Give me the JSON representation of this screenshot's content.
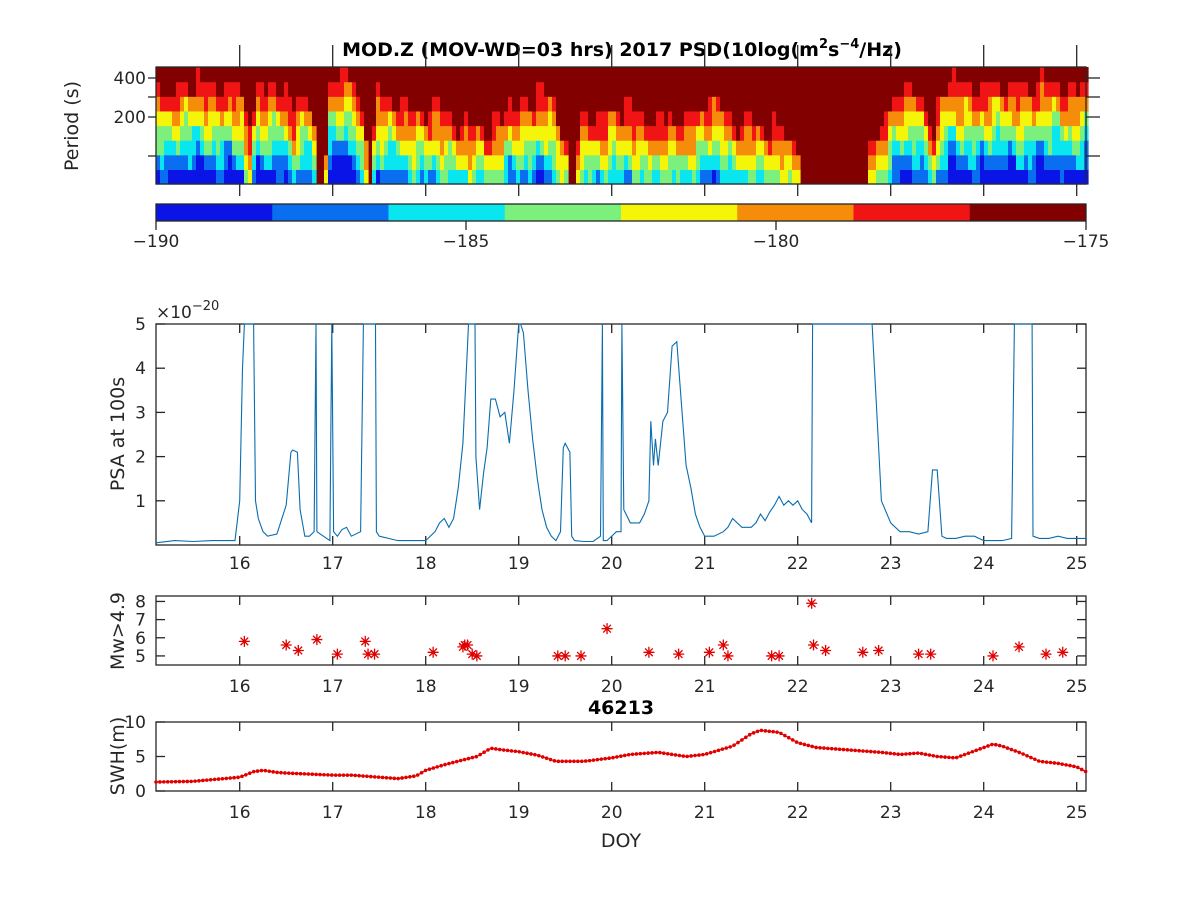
{
  "chart_data": [
    {
      "type": "heatmap",
      "title_parts": [
        "MOD.Z (MOV-WD=03 hrs) 2017 PSD(10log(m",
        "2",
        "s",
        "−4",
        "/Hz)"
      ],
      "ylabel": "Period (s)",
      "yticks": [
        "400",
        "200"
      ],
      "xlim": [
        15.1,
        25.1
      ],
      "colorbar": {
        "range": [
          -190,
          -175
        ],
        "ticks": [
          "−190",
          "−185",
          "−180",
          "−175"
        ],
        "colors": [
          "#0a14e6",
          "#0a6ef0",
          "#0ae6f0",
          "#7cf07c",
          "#f5f50a",
          "#f58c0a",
          "#f01414",
          "#820000"
        ]
      },
      "saturated_color": "#820000",
      "background_levels": [
        [
          15.1,
          3
        ],
        [
          15.5,
          3
        ],
        [
          15.9,
          3
        ],
        [
          16.0,
          4
        ],
        [
          16.08,
          7
        ],
        [
          16.15,
          3
        ],
        [
          16.4,
          3
        ],
        [
          16.55,
          5
        ],
        [
          16.62,
          4
        ],
        [
          16.75,
          3
        ],
        [
          16.82,
          8
        ],
        [
          16.9,
          8
        ],
        [
          16.95,
          3
        ],
        [
          17.2,
          2
        ],
        [
          17.3,
          5
        ],
        [
          17.38,
          8
        ],
        [
          17.45,
          4
        ],
        [
          17.7,
          4
        ],
        [
          18.0,
          5
        ],
        [
          18.3,
          5
        ],
        [
          18.45,
          6
        ],
        [
          18.7,
          6
        ],
        [
          18.9,
          4
        ],
        [
          19.0,
          5
        ],
        [
          19.3,
          3
        ],
        [
          19.48,
          7
        ],
        [
          19.55,
          8
        ],
        [
          19.7,
          5
        ],
        [
          20.0,
          5
        ],
        [
          20.3,
          5
        ],
        [
          20.6,
          6
        ],
        [
          20.8,
          5
        ],
        [
          21.0,
          4
        ],
        [
          21.3,
          5
        ],
        [
          21.6,
          6
        ],
        [
          21.8,
          6
        ],
        [
          22.1,
          8
        ],
        [
          22.5,
          8
        ],
        [
          22.7,
          8
        ],
        [
          22.85,
          6
        ],
        [
          23.0,
          4
        ],
        [
          23.3,
          3
        ],
        [
          23.45,
          6
        ],
        [
          23.55,
          3
        ],
        [
          23.8,
          3
        ],
        [
          24.0,
          3
        ],
        [
          24.4,
          3
        ],
        [
          24.6,
          3
        ],
        [
          24.9,
          3
        ],
        [
          25.1,
          3
        ]
      ]
    },
    {
      "type": "line",
      "ylabel": "PSA at 100s",
      "multiplier": "×10",
      "multiplier_exp": "−20",
      "ylim": [
        0,
        5
      ],
      "yticks": [
        "1",
        "2",
        "3",
        "4",
        "5"
      ],
      "xlim": [
        15.1,
        25.1
      ],
      "xticks": [
        "16",
        "17",
        "18",
        "19",
        "20",
        "21",
        "22",
        "23",
        "24",
        "25"
      ],
      "color": "#0a6dae",
      "x": [
        15.1,
        15.3,
        15.5,
        15.7,
        15.95,
        16.0,
        16.03,
        16.05,
        16.07,
        16.15,
        16.17,
        16.2,
        16.25,
        16.3,
        16.4,
        16.5,
        16.55,
        16.57,
        16.62,
        16.65,
        16.7,
        16.75,
        16.8,
        16.82,
        16.83,
        16.9,
        16.97,
        16.99,
        17.01,
        17.05,
        17.1,
        17.15,
        17.2,
        17.3,
        17.33,
        17.34,
        17.46,
        17.47,
        17.5,
        17.6,
        17.7,
        17.8,
        17.9,
        18.0,
        18.1,
        18.15,
        18.2,
        18.25,
        18.3,
        18.35,
        18.4,
        18.45,
        18.46,
        18.53,
        18.54,
        18.58,
        18.62,
        18.66,
        18.7,
        18.75,
        18.8,
        18.85,
        18.9,
        18.95,
        19.0,
        19.02,
        19.05,
        19.1,
        19.15,
        19.2,
        19.25,
        19.3,
        19.35,
        19.4,
        19.45,
        19.48,
        19.5,
        19.55,
        19.57,
        19.6,
        19.7,
        19.8,
        19.88,
        19.9,
        19.91,
        19.94,
        19.95,
        20.05,
        20.1,
        20.11,
        20.13,
        20.2,
        20.3,
        20.35,
        20.4,
        20.42,
        20.45,
        20.47,
        20.5,
        20.55,
        20.6,
        20.65,
        20.7,
        20.75,
        20.8,
        20.85,
        20.9,
        20.95,
        21.0,
        21.1,
        21.2,
        21.25,
        21.3,
        21.4,
        21.5,
        21.55,
        21.6,
        21.65,
        21.7,
        21.75,
        21.8,
        21.85,
        21.9,
        21.95,
        22.0,
        22.05,
        22.1,
        22.15,
        22.16,
        22.8,
        22.85,
        22.9,
        23.0,
        23.1,
        23.2,
        23.3,
        23.4,
        23.45,
        23.5,
        23.55,
        23.6,
        23.7,
        23.8,
        23.9,
        24.0,
        24.1,
        24.2,
        24.3,
        24.33,
        24.37,
        24.5,
        24.52,
        24.53,
        24.6,
        24.7,
        24.8,
        24.9,
        25.0,
        25.1
      ],
      "y": [
        0.05,
        0.1,
        0.08,
        0.1,
        0.1,
        1.0,
        4.0,
        5.0,
        5.0,
        5.0,
        1.0,
        0.6,
        0.3,
        0.2,
        0.25,
        0.9,
        2.1,
        2.15,
        2.1,
        0.8,
        0.2,
        0.2,
        0.3,
        5.0,
        0.3,
        0.2,
        0.1,
        5.0,
        0.3,
        0.2,
        0.35,
        0.4,
        0.2,
        0.3,
        5.0,
        5.0,
        5.0,
        0.3,
        0.2,
        0.15,
        0.1,
        0.1,
        0.1,
        0.1,
        0.3,
        0.5,
        0.6,
        0.4,
        0.6,
        1.3,
        2.3,
        4.5,
        5.0,
        5.0,
        2.0,
        0.8,
        1.6,
        2.2,
        3.3,
        3.3,
        2.9,
        3.0,
        2.3,
        3.5,
        5.0,
        5.0,
        4.8,
        3.5,
        2.4,
        1.5,
        0.8,
        0.4,
        0.2,
        0.1,
        0.3,
        2.2,
        2.3,
        2.1,
        0.2,
        0.1,
        0.08,
        0.08,
        0.2,
        5.0,
        0.1,
        0.1,
        0.1,
        0.3,
        0.3,
        5.0,
        0.8,
        0.5,
        0.5,
        0.7,
        1.0,
        2.8,
        1.8,
        2.4,
        1.8,
        2.8,
        3.0,
        4.5,
        4.6,
        3.2,
        1.8,
        1.3,
        0.7,
        0.4,
        0.2,
        0.2,
        0.3,
        0.4,
        0.6,
        0.4,
        0.4,
        0.5,
        0.7,
        0.55,
        0.75,
        0.9,
        1.1,
        0.9,
        1.0,
        0.9,
        1.0,
        0.8,
        0.7,
        0.5,
        5.0,
        5.0,
        3.0,
        1.0,
        0.5,
        0.3,
        0.3,
        0.25,
        0.3,
        1.7,
        1.7,
        0.2,
        0.15,
        0.15,
        0.2,
        0.2,
        0.1,
        0.1,
        0.1,
        0.15,
        5.0,
        5.0,
        5.0,
        5.0,
        0.2,
        0.15,
        0.15,
        0.2,
        0.15,
        0.15,
        0.15
      ]
    },
    {
      "type": "scatter",
      "ylabel": "Mw>4.9",
      "ylim": [
        4.5,
        8.3
      ],
      "yticks": [
        "5",
        "6",
        "7",
        "8"
      ],
      "xlim": [
        15.1,
        25.1
      ],
      "xticks": [
        "16",
        "17",
        "18",
        "19",
        "20",
        "21",
        "22",
        "23",
        "24",
        "25"
      ],
      "marker": "asterisk",
      "color": "#e00000",
      "x": [
        16.05,
        16.5,
        16.63,
        16.83,
        17.05,
        17.35,
        17.38,
        17.45,
        18.08,
        18.4,
        18.42,
        18.45,
        18.5,
        18.55,
        19.42,
        19.5,
        19.67,
        19.95,
        20.4,
        20.72,
        21.05,
        21.2,
        21.25,
        21.72,
        21.8,
        22.15,
        22.17,
        22.3,
        22.7,
        22.87,
        23.3,
        23.43,
        24.1,
        24.38,
        24.67,
        24.85
      ],
      "y": [
        5.8,
        5.6,
        5.3,
        5.9,
        5.1,
        5.8,
        5.1,
        5.1,
        5.2,
        5.5,
        5.6,
        5.6,
        5.1,
        5.0,
        5.0,
        5.0,
        5.0,
        6.5,
        5.2,
        5.1,
        5.2,
        5.6,
        5.0,
        5.0,
        5.0,
        7.9,
        5.6,
        5.3,
        5.2,
        5.3,
        5.1,
        5.1,
        5.0,
        5.5,
        5.1,
        5.2
      ]
    },
    {
      "type": "line",
      "title": "46213",
      "xlabel": "DOY",
      "ylabel": "SWH(m)",
      "ylim": [
        0,
        10
      ],
      "yticks": [
        "0",
        "5",
        "10"
      ],
      "xlim": [
        15.1,
        25.1
      ],
      "xticks": [
        "16",
        "17",
        "18",
        "19",
        "20",
        "21",
        "22",
        "23",
        "24",
        "25"
      ],
      "color": "#e00000",
      "marker": "dot",
      "x": [
        15.1,
        15.5,
        16.0,
        16.15,
        16.25,
        16.4,
        16.5,
        17.0,
        17.2,
        17.5,
        17.7,
        17.9,
        18.0,
        18.2,
        18.4,
        18.55,
        18.7,
        18.8,
        19.0,
        19.2,
        19.4,
        19.7,
        20.0,
        20.2,
        20.5,
        20.8,
        21.0,
        21.3,
        21.5,
        21.6,
        21.8,
        22.0,
        22.2,
        22.5,
        22.7,
        22.9,
        23.1,
        23.3,
        23.5,
        23.7,
        23.9,
        24.1,
        24.2,
        24.4,
        24.6,
        24.8,
        25.0,
        25.1
      ],
      "y": [
        1.3,
        1.4,
        2.0,
        2.8,
        3.0,
        2.7,
        2.6,
        2.3,
        2.3,
        2.0,
        1.8,
        2.2,
        3.0,
        3.8,
        4.5,
        5.0,
        6.2,
        6.0,
        5.7,
        5.2,
        4.3,
        4.3,
        4.8,
        5.3,
        5.6,
        5.0,
        5.3,
        6.5,
        8.3,
        8.8,
        8.5,
        7.0,
        6.3,
        6.0,
        5.8,
        5.6,
        5.3,
        5.5,
        5.0,
        4.8,
        5.8,
        6.8,
        6.5,
        5.5,
        4.3,
        4.0,
        3.5,
        2.8
      ]
    }
  ]
}
